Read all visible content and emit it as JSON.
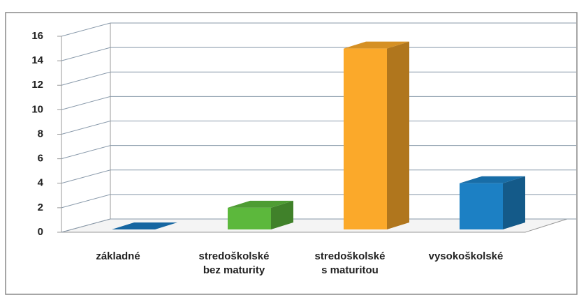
{
  "chart_data": {
    "type": "bar3d",
    "categories": [
      "základné",
      "stredoškolské\nbez maturity",
      "stredoškolské\ns maturitou",
      "vysokoškolské"
    ],
    "values": [
      0,
      2,
      15,
      4
    ],
    "colors": [
      "#1a78bd",
      "#5cb83c",
      "#fba92a",
      "#1c80c4"
    ],
    "ylim": [
      0,
      16
    ],
    "yticks": [
      0,
      2,
      4,
      6,
      8,
      10,
      12,
      14,
      16
    ],
    "grid": true
  }
}
